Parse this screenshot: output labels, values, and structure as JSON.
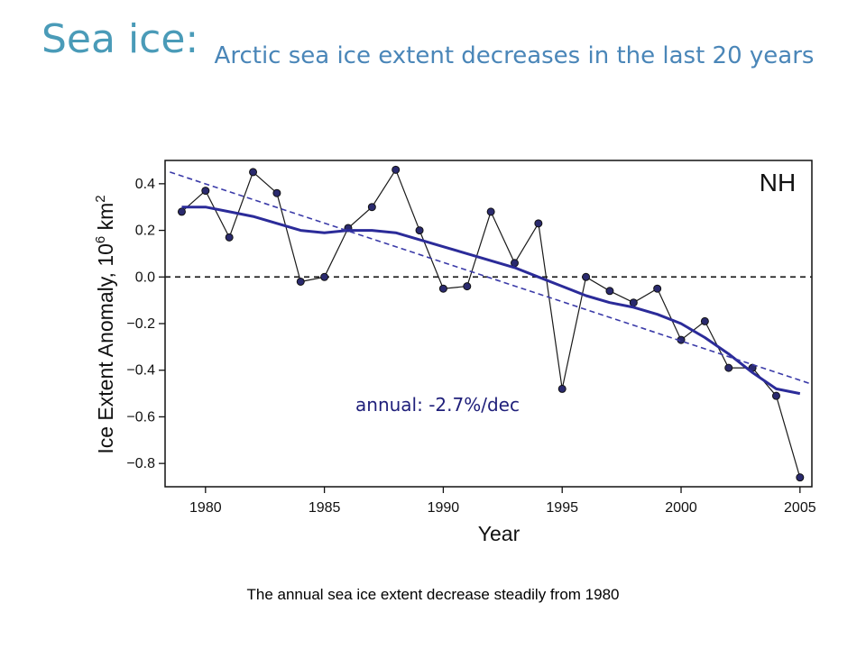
{
  "slide": {
    "title": "Sea ice:",
    "subtitle": "Arctic sea ice extent decreases in the last 20 years",
    "caption": "The annual sea ice extent decrease steadily from 1980"
  },
  "chart_data": {
    "type": "line",
    "panel_label": "NH",
    "annotation": "annual: -2.7%/dec",
    "xlabel": "Year",
    "ylabel_main": "Ice Extent Anomaly, 10",
    "ylabel_sup": "6",
    "ylabel_tail": " km",
    "ylabel_sup2": "2",
    "xlim": [
      1978.3,
      2005.5
    ],
    "ylim": [
      -0.9,
      0.5
    ],
    "x_ticks": [
      1980,
      1985,
      1990,
      1995,
      2000,
      2005
    ],
    "y_ticks": [
      0.4,
      0.2,
      0.0,
      -0.2,
      -0.4,
      -0.6,
      -0.8
    ],
    "y_tick_labels": [
      "0.4",
      "0.2",
      "0.0",
      "−0.2",
      "−0.4",
      "−0.6",
      "−0.8"
    ],
    "series": [
      {
        "kind": "observed",
        "x": [
          1979,
          1980,
          1981,
          1982,
          1983,
          1984,
          1985,
          1986,
          1987,
          1988,
          1989,
          1990,
          1991,
          1992,
          1993,
          1994,
          1995,
          1996,
          1997,
          1998,
          1999,
          2000,
          2001,
          2002,
          2003,
          2004,
          2005
        ],
        "values": [
          0.28,
          0.37,
          0.17,
          0.45,
          0.36,
          -0.02,
          0.0,
          0.21,
          0.3,
          0.46,
          0.2,
          -0.05,
          -0.04,
          0.28,
          0.06,
          0.23,
          -0.48,
          0.0,
          -0.06,
          -0.11,
          -0.05,
          -0.27,
          -0.19,
          -0.39,
          -0.39,
          -0.51,
          -0.86
        ],
        "color": "#1a1a1a",
        "marker_color": "#2a2a6e"
      },
      {
        "kind": "smoothed",
        "x": [
          1979,
          1980,
          1981,
          1982,
          1983,
          1984,
          1985,
          1986,
          1987,
          1988,
          1989,
          1990,
          1991,
          1992,
          1993,
          1994,
          1995,
          1996,
          1997,
          1998,
          1999,
          2000,
          2001,
          2002,
          2003,
          2004,
          2005
        ],
        "values": [
          0.3,
          0.3,
          0.28,
          0.26,
          0.23,
          0.2,
          0.19,
          0.2,
          0.2,
          0.19,
          0.16,
          0.13,
          0.1,
          0.07,
          0.04,
          0.0,
          -0.04,
          -0.08,
          -0.11,
          -0.13,
          -0.16,
          -0.2,
          -0.26,
          -0.33,
          -0.41,
          -0.48,
          -0.5
        ],
        "color": "#2b2b99"
      },
      {
        "kind": "linear-trend",
        "x": [
          1978.5,
          2005.5
        ],
        "values": [
          0.45,
          -0.46
        ],
        "color": "#3a3aa8",
        "style": "dashed"
      }
    ],
    "zero_line": {
      "value": 0.0,
      "color": "#222222",
      "style": "dashed"
    }
  }
}
